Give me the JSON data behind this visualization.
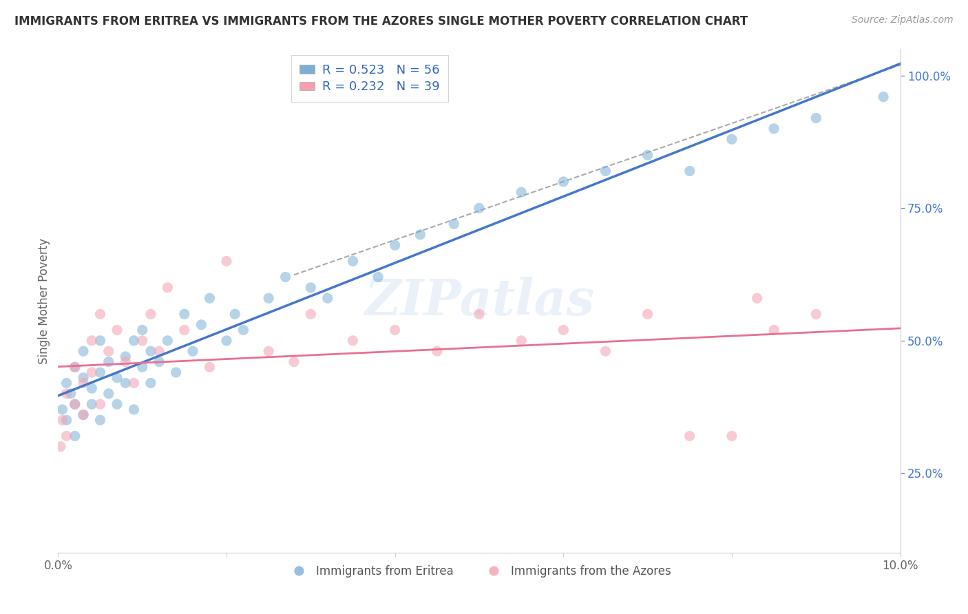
{
  "title": "IMMIGRANTS FROM ERITREA VS IMMIGRANTS FROM THE AZORES SINGLE MOTHER POVERTY CORRELATION CHART",
  "source": "Source: ZipAtlas.com",
  "ylabel": "Single Mother Poverty",
  "legend_label1": "R = 0.523   N = 56",
  "legend_label2": "R = 0.232   N = 39",
  "legend_bottom1": "Immigrants from Eritrea",
  "legend_bottom2": "Immigrants from the Azores",
  "blue_color": "#7BAFD4",
  "pink_color": "#F4A0B0",
  "blue_line_color": "#4477CC",
  "pink_line_color": "#E87090",
  "dashed_line_color": "#AAAAAA",
  "R_color": "#3366BB",
  "eritrea_x": [
    0.0005,
    0.001,
    0.001,
    0.0015,
    0.002,
    0.002,
    0.002,
    0.003,
    0.003,
    0.003,
    0.004,
    0.004,
    0.005,
    0.005,
    0.005,
    0.006,
    0.006,
    0.007,
    0.007,
    0.008,
    0.008,
    0.009,
    0.009,
    0.01,
    0.01,
    0.011,
    0.011,
    0.012,
    0.013,
    0.014,
    0.015,
    0.016,
    0.017,
    0.018,
    0.02,
    0.021,
    0.022,
    0.025,
    0.027,
    0.03,
    0.032,
    0.035,
    0.038,
    0.04,
    0.043,
    0.047,
    0.05,
    0.055,
    0.06,
    0.065,
    0.07,
    0.075,
    0.08,
    0.085,
    0.09,
    0.098
  ],
  "eritrea_y": [
    0.37,
    0.42,
    0.35,
    0.4,
    0.38,
    0.45,
    0.32,
    0.43,
    0.36,
    0.48,
    0.41,
    0.38,
    0.44,
    0.5,
    0.35,
    0.46,
    0.4,
    0.43,
    0.38,
    0.47,
    0.42,
    0.5,
    0.37,
    0.45,
    0.52,
    0.42,
    0.48,
    0.46,
    0.5,
    0.44,
    0.55,
    0.48,
    0.53,
    0.58,
    0.5,
    0.55,
    0.52,
    0.58,
    0.62,
    0.6,
    0.58,
    0.65,
    0.62,
    0.68,
    0.7,
    0.72,
    0.75,
    0.78,
    0.8,
    0.82,
    0.85,
    0.82,
    0.88,
    0.9,
    0.92,
    0.96
  ],
  "azores_x": [
    0.0003,
    0.0005,
    0.001,
    0.001,
    0.002,
    0.002,
    0.003,
    0.003,
    0.004,
    0.004,
    0.005,
    0.005,
    0.006,
    0.007,
    0.008,
    0.009,
    0.01,
    0.011,
    0.012,
    0.013,
    0.015,
    0.018,
    0.02,
    0.025,
    0.028,
    0.03,
    0.035,
    0.04,
    0.045,
    0.05,
    0.055,
    0.06,
    0.065,
    0.07,
    0.075,
    0.08,
    0.083,
    0.085,
    0.09
  ],
  "azores_y": [
    0.3,
    0.35,
    0.32,
    0.4,
    0.38,
    0.45,
    0.42,
    0.36,
    0.5,
    0.44,
    0.55,
    0.38,
    0.48,
    0.52,
    0.46,
    0.42,
    0.5,
    0.55,
    0.48,
    0.6,
    0.52,
    0.45,
    0.65,
    0.48,
    0.46,
    0.55,
    0.5,
    0.52,
    0.48,
    0.55,
    0.5,
    0.52,
    0.48,
    0.55,
    0.32,
    0.32,
    0.58,
    0.52,
    0.55
  ],
  "background_color": "#FFFFFF",
  "grid_color": "#E0E0E0",
  "dot_size": 120,
  "dot_alpha": 0.55,
  "xlim": [
    0.0,
    0.1
  ],
  "ylim": [
    0.1,
    1.05
  ],
  "y_ticks": [
    0.25,
    0.5,
    0.75,
    1.0
  ],
  "y_tick_labels": [
    "25.0%",
    "50.0%",
    "75.0%",
    "100.0%"
  ],
  "x_ticks": [
    0.0,
    0.02,
    0.04,
    0.06,
    0.08,
    0.1
  ],
  "x_tick_labels": [
    "0.0%",
    "",
    "",
    "",
    "",
    "10.0%"
  ]
}
